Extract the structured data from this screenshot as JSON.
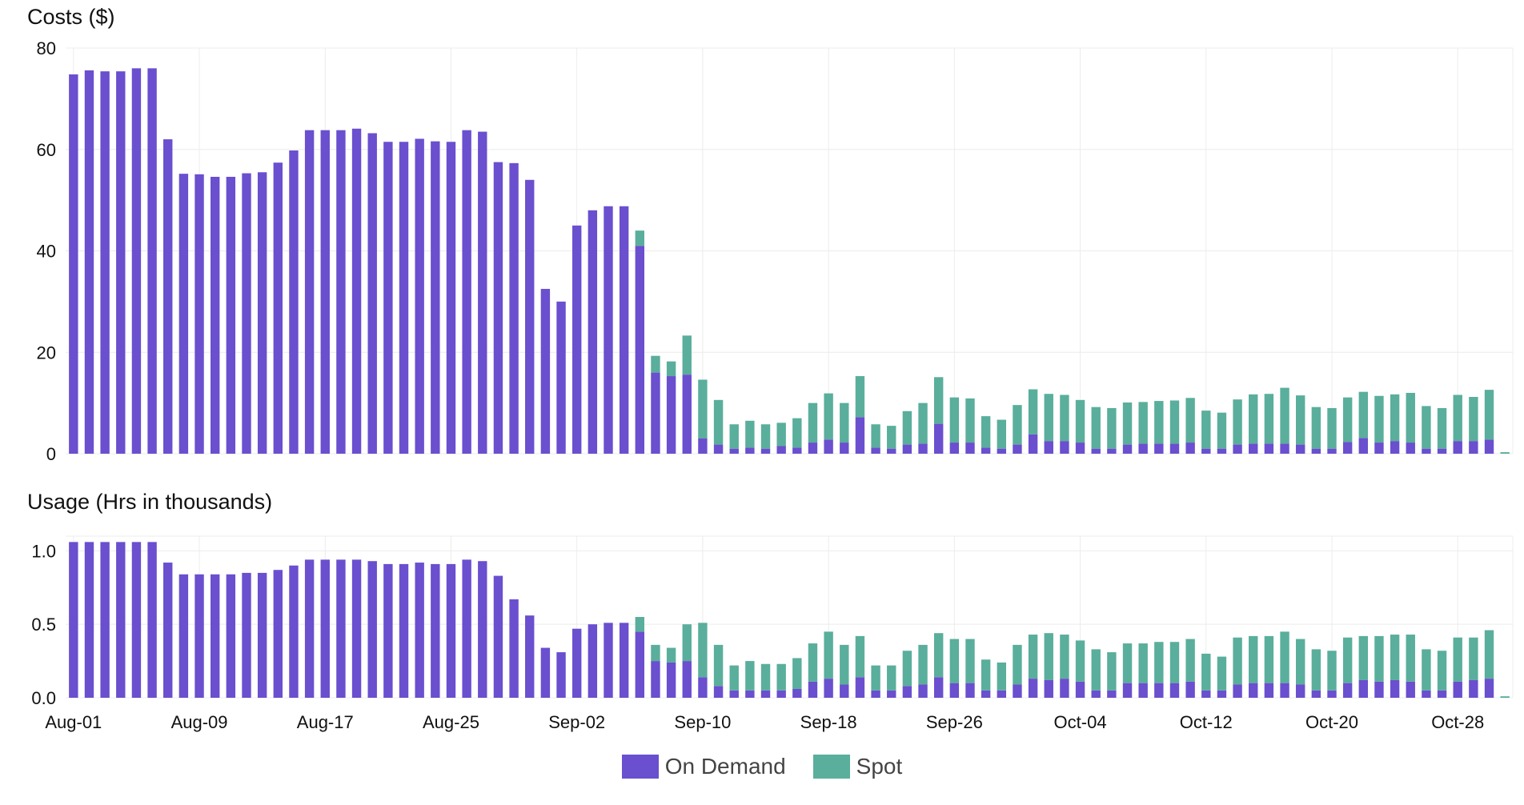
{
  "chart_data": [
    {
      "type": "bar",
      "stacked": true,
      "title": "Costs ($)",
      "ylim": [
        0,
        80
      ],
      "yticks": [
        "0",
        "20",
        "40",
        "60",
        "80"
      ],
      "categories_start": "Aug-01",
      "xticks": [
        "Aug-01",
        "Aug-09",
        "Aug-17",
        "Aug-25",
        "Sep-02",
        "Sep-10",
        "Sep-18",
        "Sep-26",
        "Oct-04",
        "Oct-12",
        "Oct-20",
        "Oct-28"
      ],
      "series": [
        {
          "name": "On Demand",
          "values": [
            74.8,
            75.6,
            75.4,
            75.4,
            76,
            76,
            62,
            55.2,
            55.1,
            54.6,
            54.6,
            55.3,
            55.5,
            57.4,
            59.8,
            63.8,
            63.8,
            63.8,
            64.1,
            63.2,
            61.5,
            61.5,
            62.1,
            61.6,
            61.5,
            63.8,
            63.5,
            57.5,
            57.3,
            54,
            32.5,
            30,
            45,
            48,
            48.8,
            48.8,
            41,
            16,
            15.3,
            15.6,
            3,
            1.8,
            1,
            1.2,
            1,
            1.5,
            1.2,
            2.2,
            2.8,
            2.2,
            7.2,
            1.2,
            1,
            1.8,
            2,
            5.9,
            2.2,
            2.2,
            1.2,
            1,
            1.8,
            3.8,
            2.5,
            2.5,
            2.2,
            1,
            1,
            1.8,
            2,
            2,
            2,
            2.2,
            1,
            1,
            1.8,
            2,
            2,
            2,
            1.8,
            1,
            1,
            2.3,
            3.1,
            2.2,
            2.5,
            2.2,
            1,
            1,
            2.5,
            2.5,
            2.8,
            0
          ]
        },
        {
          "name": "Spot",
          "values": [
            0,
            0,
            0,
            0,
            0,
            0,
            0,
            0,
            0,
            0,
            0,
            0,
            0,
            0,
            0,
            0,
            0,
            0,
            0,
            0,
            0,
            0,
            0,
            0,
            0,
            0,
            0,
            0,
            0,
            0,
            0,
            0,
            0,
            0,
            0,
            0,
            3,
            3.3,
            2.9,
            7.7,
            11.6,
            8.8,
            4.8,
            5.3,
            4.8,
            4.6,
            5.8,
            7.8,
            9.1,
            7.8,
            8.1,
            4.6,
            4.5,
            6.6,
            8,
            9.2,
            8.9,
            8.7,
            6.2,
            5.7,
            7.8,
            8.9,
            9.3,
            9.1,
            8.4,
            8.2,
            8,
            8.3,
            8.2,
            8.4,
            8.5,
            8.8,
            7.5,
            7.1,
            8.9,
            9.7,
            9.8,
            11,
            9.7,
            8.2,
            8,
            8.8,
            9.1,
            9.2,
            9.2,
            9.8,
            8.4,
            8,
            9.1,
            8.7,
            9.8,
            0.3
          ]
        }
      ]
    },
    {
      "type": "bar",
      "stacked": true,
      "title": "Usage (Hrs in thousands)",
      "ylim": [
        0,
        1.1
      ],
      "yticks": [
        "0.0",
        "0.5",
        "1.0"
      ],
      "categories_start": "Aug-01",
      "xticks": [
        "Aug-01",
        "Aug-09",
        "Aug-17",
        "Aug-25",
        "Sep-02",
        "Sep-10",
        "Sep-18",
        "Sep-26",
        "Oct-04",
        "Oct-12",
        "Oct-20",
        "Oct-28"
      ],
      "series": [
        {
          "name": "On Demand",
          "values": [
            1.06,
            1.06,
            1.06,
            1.06,
            1.06,
            1.06,
            0.92,
            0.84,
            0.84,
            0.84,
            0.84,
            0.85,
            0.85,
            0.87,
            0.9,
            0.94,
            0.94,
            0.94,
            0.94,
            0.93,
            0.91,
            0.91,
            0.92,
            0.91,
            0.91,
            0.94,
            0.93,
            0.83,
            0.67,
            0.56,
            0.34,
            0.31,
            0.47,
            0.5,
            0.51,
            0.51,
            0.45,
            0.25,
            0.24,
            0.25,
            0.14,
            0.08,
            0.05,
            0.05,
            0.05,
            0.05,
            0.06,
            0.11,
            0.13,
            0.09,
            0.14,
            0.05,
            0.05,
            0.08,
            0.09,
            0.14,
            0.1,
            0.1,
            0.05,
            0.05,
            0.09,
            0.13,
            0.12,
            0.13,
            0.11,
            0.05,
            0.05,
            0.1,
            0.1,
            0.1,
            0.1,
            0.11,
            0.05,
            0.05,
            0.09,
            0.1,
            0.1,
            0.1,
            0.09,
            0.05,
            0.05,
            0.1,
            0.12,
            0.11,
            0.12,
            0.11,
            0.05,
            0.05,
            0.11,
            0.12,
            0.13,
            0
          ]
        },
        {
          "name": "Spot",
          "values": [
            0,
            0,
            0,
            0,
            0,
            0,
            0,
            0,
            0,
            0,
            0,
            0,
            0,
            0,
            0,
            0,
            0,
            0,
            0,
            0,
            0,
            0,
            0,
            0,
            0,
            0,
            0,
            0,
            0,
            0,
            0,
            0,
            0,
            0,
            0,
            0,
            0.1,
            0.11,
            0.1,
            0.25,
            0.37,
            0.28,
            0.17,
            0.2,
            0.18,
            0.18,
            0.21,
            0.26,
            0.32,
            0.27,
            0.28,
            0.17,
            0.17,
            0.24,
            0.27,
            0.3,
            0.3,
            0.3,
            0.21,
            0.19,
            0.27,
            0.3,
            0.32,
            0.3,
            0.28,
            0.28,
            0.26,
            0.27,
            0.27,
            0.28,
            0.28,
            0.29,
            0.25,
            0.23,
            0.32,
            0.32,
            0.32,
            0.35,
            0.31,
            0.28,
            0.27,
            0.31,
            0.3,
            0.31,
            0.31,
            0.32,
            0.28,
            0.27,
            0.3,
            0.29,
            0.33,
            0.01
          ]
        }
      ]
    }
  ],
  "legend": [
    {
      "label": "On Demand",
      "color": "#6a4fcf"
    },
    {
      "label": "Spot",
      "color": "#5aae9c"
    }
  ],
  "colors": {
    "on_demand": "#6a4fcf",
    "spot": "#5aae9c",
    "grid": "#ececec"
  }
}
